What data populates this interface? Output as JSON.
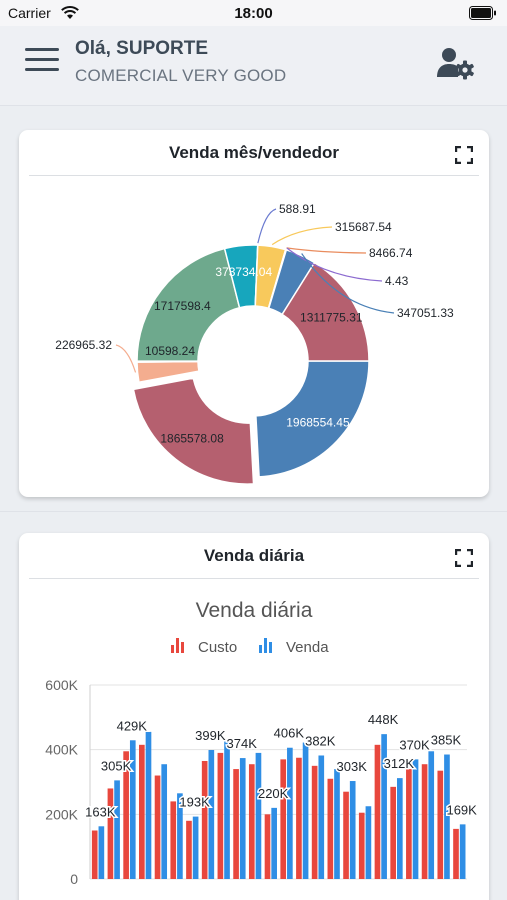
{
  "status_bar": {
    "carrier": "Carrier",
    "time": "18:00"
  },
  "header": {
    "greeting": "Olá, SUPORTE",
    "company": "COMERCIAL VERY GOOD"
  },
  "cards": {
    "monthly": {
      "title": "Venda mês/vendedor"
    },
    "daily": {
      "title": "Venda diária"
    }
  },
  "chart_data": [
    {
      "type": "pie",
      "title": "",
      "donut": true,
      "slices": [
        {
          "value": 1968554.45,
          "label": "1968554.45",
          "color": "#4a80b6",
          "exploded": false
        },
        {
          "value": 1865578.08,
          "label": "1865578.08",
          "color": "#b5606f",
          "exploded": true
        },
        {
          "value": 226965.32,
          "label": "226965.32",
          "color": "#f4ad8f",
          "exploded": false
        },
        {
          "value": 10598.24,
          "label": "10598.24",
          "color": "#e8735d",
          "exploded": false
        },
        {
          "value": 1717598.4,
          "label": "1717598.4",
          "color": "#6ea98d",
          "exploded": false
        },
        {
          "value": 373734.04,
          "label": "373734.04",
          "color": "#17a6bd",
          "exploded": false
        },
        {
          "value": 588.91,
          "label": "588.91",
          "color": "#6b7bd0",
          "exploded": false
        },
        {
          "value": 315687.54,
          "label": "315687.54",
          "color": "#f8c95c",
          "exploded": false
        },
        {
          "value": 8466.74,
          "label": "8466.74",
          "color": "#e98c5e",
          "exploded": false
        },
        {
          "value": 4.43,
          "label": "4.43",
          "color": "#8c6bd0",
          "exploded": false
        },
        {
          "value": 347051.33,
          "label": "347051.33",
          "color": "#4a80b6",
          "exploded": false
        },
        {
          "value": 1311775.31,
          "label": "1311775.31",
          "color": "#b5606f",
          "exploded": false
        }
      ]
    },
    {
      "type": "bar",
      "title": "Venda diária",
      "legend": "top",
      "grid": true,
      "ylim": [
        0,
        600000
      ],
      "yticks": [
        "0",
        "200K",
        "400K",
        "600K"
      ],
      "series": [
        {
          "name": "Custo",
          "color": "#e8473d",
          "values": [
            150000,
            280000,
            395000,
            415000,
            320000,
            240000,
            180000,
            365000,
            390000,
            340000,
            355000,
            200000,
            370000,
            375000,
            350000,
            310000,
            270000,
            205000,
            415000,
            285000,
            340000,
            355000,
            335000,
            155000
          ]
        },
        {
          "name": "Venda",
          "color": "#2f8ee5",
          "values": [
            163000,
            305000,
            429000,
            455000,
            355000,
            265000,
            193000,
            399000,
            425000,
            374000,
            390000,
            220000,
            406000,
            422000,
            382000,
            340000,
            303000,
            225000,
            448000,
            312000,
            370000,
            395000,
            385000,
            169000
          ]
        }
      ],
      "data_labels": [
        "163K",
        "305K",
        "429K",
        "193K",
        "399K",
        "374K",
        "220K",
        "406K",
        "382K",
        "303K",
        "448K",
        "312K",
        "370K",
        "385K",
        "169K"
      ]
    }
  ]
}
